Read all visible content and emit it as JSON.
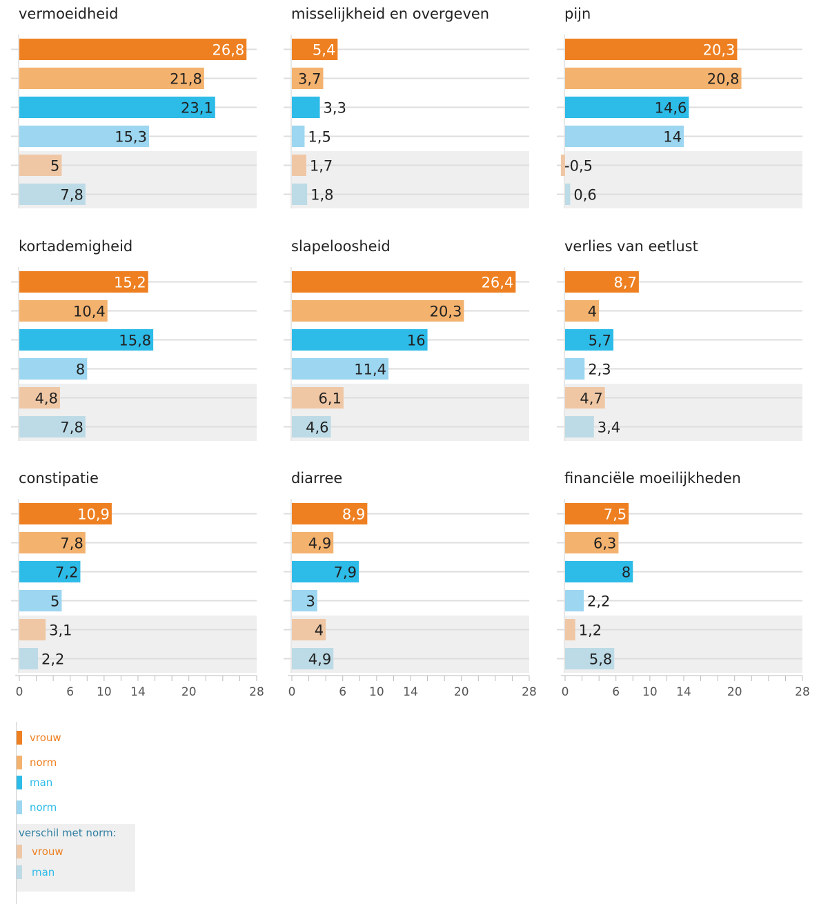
{
  "chart_data": {
    "type": "bar",
    "orientation": "horizontal",
    "small_multiples": true,
    "categories": [
      "vrouw",
      "norm",
      "man",
      "norm",
      "vrouw",
      "man"
    ],
    "series_colors": [
      "#ee8022",
      "#f3b26e",
      "#2dbbe8",
      "#9cd6f0",
      "#efc7a5",
      "#bcdbe6"
    ],
    "xlim": [
      0,
      28
    ],
    "xticks": [
      0,
      6,
      10,
      14,
      20,
      28
    ],
    "grid": true,
    "decimal_separator": ",",
    "panels": [
      {
        "title": "vermoeidheid",
        "values": [
          26.8,
          21.8,
          23.1,
          15.3,
          5,
          7.8
        ]
      },
      {
        "title": "misselijkheid en overgeven",
        "values": [
          5.4,
          3.7,
          3.3,
          1.5,
          1.7,
          1.8
        ]
      },
      {
        "title": "pijn",
        "values": [
          20.3,
          20.8,
          14.6,
          14,
          -0.5,
          0.6
        ]
      },
      {
        "title": "kortademigheid",
        "values": [
          15.2,
          10.4,
          15.8,
          8,
          4.8,
          7.8
        ]
      },
      {
        "title": "slapeloosheid",
        "values": [
          26.4,
          20.3,
          16,
          11.4,
          6.1,
          4.6
        ]
      },
      {
        "title": "verlies van eetlust",
        "values": [
          8.7,
          4,
          5.7,
          2.3,
          4.7,
          3.4
        ]
      },
      {
        "title": "constipatie",
        "values": [
          10.9,
          7.8,
          7.2,
          5,
          3.1,
          2.2
        ]
      },
      {
        "title": "diarree",
        "values": [
          8.9,
          4.9,
          7.9,
          3,
          4,
          4.9
        ]
      },
      {
        "title": "financiële moeilijkheden",
        "values": [
          7.5,
          6.3,
          8,
          2.2,
          1.2,
          5.8
        ]
      }
    ]
  },
  "legend": {
    "items": [
      {
        "label": "vrouw",
        "color": "#ee8022",
        "text_color": "#ee8022"
      },
      {
        "label": "norm",
        "color": "#f3b26e",
        "text_color": "#ee8022"
      },
      {
        "label": "man",
        "color": "#2dbbe8",
        "text_color": "#2dbbe8"
      },
      {
        "label": "norm",
        "color": "#9cd6f0",
        "text_color": "#2dbbe8"
      }
    ],
    "difference": {
      "title": "verschil met norm:",
      "items": [
        {
          "label": "vrouw",
          "color": "#efc7a5",
          "text_color": "#ee8022"
        },
        {
          "label": "man",
          "color": "#bcdbe6",
          "text_color": "#2dbbe8"
        }
      ]
    }
  }
}
